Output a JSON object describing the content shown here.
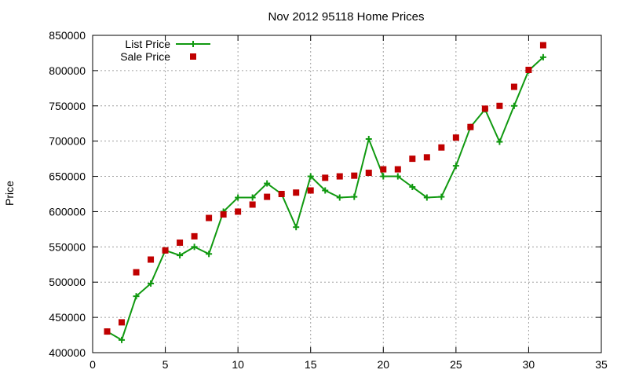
{
  "chart_data": {
    "type": "line",
    "title": "Nov 2012 95118 Home Prices",
    "xlabel": "",
    "ylabel": "Price",
    "xlim": [
      0,
      35
    ],
    "ylim": [
      400000,
      850000
    ],
    "x_ticks": [
      "0",
      "5",
      "10",
      "15",
      "20",
      "25",
      "30",
      "35"
    ],
    "y_ticks": [
      "400000",
      "450000",
      "500000",
      "550000",
      "600000",
      "650000",
      "700000",
      "750000",
      "800000",
      "850000"
    ],
    "grid": true,
    "legend_position": "top-left",
    "series": [
      {
        "name": "List Price",
        "style": "line+cross",
        "color": "#109910",
        "x": [
          1,
          2,
          3,
          4,
          5,
          6,
          7,
          8,
          9,
          10,
          11,
          12,
          13,
          14,
          15,
          16,
          17,
          18,
          19,
          20,
          21,
          22,
          23,
          24,
          25,
          26,
          27,
          28,
          29,
          30,
          31
        ],
        "y": [
          430000,
          418000,
          480000,
          498000,
          545000,
          538000,
          550000,
          540000,
          600000,
          620000,
          620000,
          640000,
          625000,
          578000,
          650000,
          630000,
          620000,
          621000,
          703000,
          650000,
          650000,
          635000,
          620000,
          621000,
          665000,
          720000,
          745000,
          699000,
          750000,
          800000,
          819000
        ]
      },
      {
        "name": "Sale Price",
        "style": "square",
        "color": "#c00000",
        "x": [
          1,
          2,
          3,
          4,
          5,
          6,
          7,
          8,
          9,
          10,
          11,
          12,
          13,
          14,
          15,
          16,
          17,
          18,
          19,
          20,
          21,
          22,
          23,
          24,
          25,
          26,
          27,
          28,
          29,
          30,
          31
        ],
        "y": [
          430000,
          443000,
          514000,
          532000,
          545000,
          556000,
          565000,
          591000,
          596000,
          600000,
          610000,
          621000,
          625000,
          627000,
          630000,
          648000,
          650000,
          651000,
          655000,
          660000,
          660000,
          675000,
          677000,
          691000,
          705000,
          720000,
          746000,
          750000,
          777000,
          801000,
          836000
        ]
      }
    ]
  }
}
